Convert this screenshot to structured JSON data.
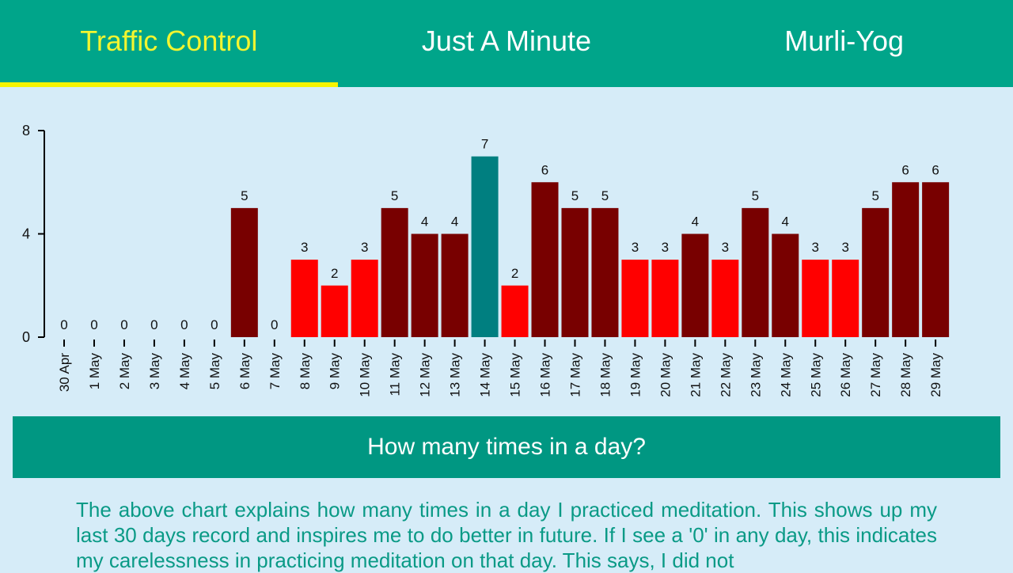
{
  "tabs": [
    {
      "label": "Traffic Control",
      "active": true
    },
    {
      "label": "Just A Minute",
      "active": false
    },
    {
      "label": "Murli-Yog",
      "active": false
    }
  ],
  "colors": {
    "tabbar_bg": "#00a58a",
    "active_tab_text": "#f2f530",
    "underline": "#f6f400",
    "bar_high": "#780000",
    "bar_low": "#ff0000",
    "bar_peak": "#007f80",
    "caption_bg": "#009782",
    "description_text": "#0a9a86",
    "page_bg": "#d6ecf8"
  },
  "chart_data": {
    "type": "bar",
    "categories": [
      "30 Apr",
      "1 May",
      "2 May",
      "3 May",
      "4 May",
      "5 May",
      "6 May",
      "7 May",
      "8 May",
      "9 May",
      "10 May",
      "11 May",
      "12 May",
      "13 May",
      "14 May",
      "15 May",
      "16 May",
      "17 May",
      "18 May",
      "19 May",
      "20 May",
      "21 May",
      "22 May",
      "23 May",
      "24 May",
      "25 May",
      "26 May",
      "27 May",
      "28 May",
      "29 May"
    ],
    "values": [
      0,
      0,
      0,
      0,
      0,
      0,
      5,
      0,
      3,
      2,
      3,
      5,
      4,
      4,
      7,
      2,
      6,
      5,
      5,
      3,
      3,
      4,
      3,
      5,
      4,
      3,
      3,
      5,
      6,
      6
    ],
    "bar_colors": [
      "#780000",
      "#780000",
      "#780000",
      "#780000",
      "#780000",
      "#780000",
      "#780000",
      "#780000",
      "#ff0000",
      "#ff0000",
      "#ff0000",
      "#780000",
      "#780000",
      "#780000",
      "#007f80",
      "#ff0000",
      "#780000",
      "#780000",
      "#780000",
      "#ff0000",
      "#ff0000",
      "#780000",
      "#ff0000",
      "#780000",
      "#780000",
      "#ff0000",
      "#ff0000",
      "#780000",
      "#780000",
      "#780000"
    ],
    "yticks": [
      0,
      4,
      8
    ],
    "ylim": [
      0,
      8
    ],
    "title": "",
    "xlabel": "",
    "ylabel": ""
  },
  "caption": "How many times in a day?",
  "description": "The above chart explains how many times in a day I practiced meditation. This shows up my last 30 days record and inspires me to do better in future. If I see a '0' in any day, this indicates my carelessness in practicing meditation on that day. This says, I did not"
}
